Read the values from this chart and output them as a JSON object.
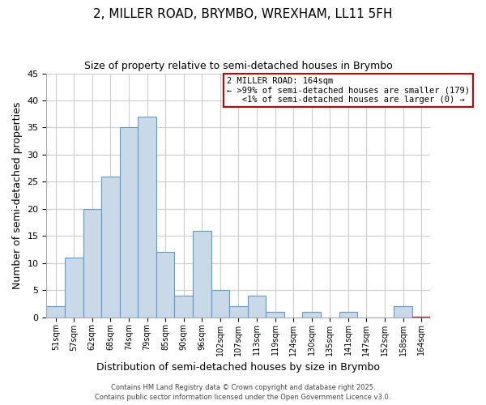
{
  "title": "2, MILLER ROAD, BRYMBO, WREXHAM, LL11 5FH",
  "subtitle": "Size of property relative to semi-detached houses in Brymbo",
  "xlabel": "Distribution of semi-detached houses by size in Brymbo",
  "ylabel": "Number of semi-detached properties",
  "bin_labels": [
    "51sqm",
    "57sqm",
    "62sqm",
    "68sqm",
    "74sqm",
    "79sqm",
    "85sqm",
    "90sqm",
    "96sqm",
    "102sqm",
    "107sqm",
    "113sqm",
    "119sqm",
    "124sqm",
    "130sqm",
    "135sqm",
    "141sqm",
    "147sqm",
    "152sqm",
    "158sqm",
    "164sqm"
  ],
  "bar_values": [
    2,
    11,
    20,
    26,
    35,
    37,
    12,
    4,
    16,
    5,
    2,
    4,
    1,
    0,
    1,
    0,
    1,
    0,
    0,
    2,
    0
  ],
  "bar_color": "#c9d9e8",
  "bar_edge_color": "#5b9bd5",
  "highlight_bar_index": 20,
  "highlight_bar_edge_color": "#cc0000",
  "ylim": [
    0,
    45
  ],
  "yticks": [
    0,
    5,
    10,
    15,
    20,
    25,
    30,
    35,
    40,
    45
  ],
  "annotation_box_text": "2 MILLER ROAD: 164sqm\n← >99% of semi-detached houses are smaller (179)\n   <1% of semi-detached houses are larger (0) →",
  "annotation_box_color": "#cc0000",
  "footer_line1": "Contains HM Land Registry data © Crown copyright and database right 2025.",
  "footer_line2": "Contains public sector information licensed under the Open Government Licence v3.0.",
  "background_color": "#ffffff",
  "grid_color": "#cccccc"
}
